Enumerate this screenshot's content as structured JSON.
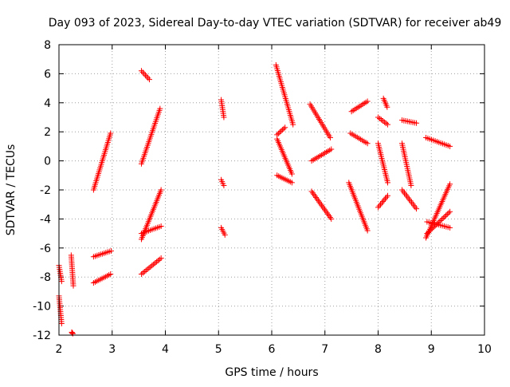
{
  "chart_data": {
    "type": "scatter",
    "title": "Day 093 of 2023, Sidereal Day-to-day VTEC variation (SDTVAR) for receiver ab49",
    "xlabel": "GPS time / hours",
    "ylabel": "SDTVAR / TECUs",
    "xlim": [
      2,
      10
    ],
    "ylim": [
      -12,
      8
    ],
    "x_ticks": [
      "2",
      "3",
      "4",
      "5",
      "6",
      "7",
      "8",
      "9",
      "10"
    ],
    "y_ticks": [
      "8",
      "6",
      "4",
      "2",
      "0",
      "-2",
      "-4",
      "-6",
      "-8",
      "-10",
      "-12"
    ],
    "grid": true,
    "marker": "+",
    "marker_color": "#ff0000",
    "segments": [
      {
        "x0": 2.0,
        "x1": 2.05,
        "y0": -7.2,
        "y1": -8.3
      },
      {
        "x0": 2.0,
        "x1": 2.05,
        "y0": -9.3,
        "y1": -11.2
      },
      {
        "x0": 2.23,
        "x1": 2.27,
        "y0": -6.5,
        "y1": -8.6
      },
      {
        "x0": 2.24,
        "x1": 2.26,
        "y0": -11.8,
        "y1": -11.9
      },
      {
        "x0": 2.65,
        "x1": 2.97,
        "y0": -2.0,
        "y1": 1.9
      },
      {
        "x0": 2.65,
        "x1": 2.98,
        "y0": -6.6,
        "y1": -6.2
      },
      {
        "x0": 2.65,
        "x1": 2.97,
        "y0": -8.4,
        "y1": -7.8
      },
      {
        "x0": 3.55,
        "x1": 3.7,
        "y0": 6.2,
        "y1": 5.6
      },
      {
        "x0": 3.55,
        "x1": 3.9,
        "y0": -0.2,
        "y1": 3.6
      },
      {
        "x0": 3.55,
        "x1": 3.92,
        "y0": -5.4,
        "y1": -2.0
      },
      {
        "x0": 3.55,
        "x1": 3.92,
        "y0": -5.0,
        "y1": -4.5
      },
      {
        "x0": 3.55,
        "x1": 3.92,
        "y0": -7.8,
        "y1": -6.7
      },
      {
        "x0": 5.05,
        "x1": 5.1,
        "y0": 4.2,
        "y1": 3.0
      },
      {
        "x0": 5.05,
        "x1": 5.1,
        "y0": -1.3,
        "y1": -1.7
      },
      {
        "x0": 5.05,
        "x1": 5.12,
        "y0": -4.6,
        "y1": -5.1
      },
      {
        "x0": 6.08,
        "x1": 6.4,
        "y0": 6.6,
        "y1": 2.5
      },
      {
        "x0": 6.1,
        "x1": 6.25,
        "y0": 1.8,
        "y1": 2.3
      },
      {
        "x0": 6.1,
        "x1": 6.38,
        "y0": 1.5,
        "y1": -0.9
      },
      {
        "x0": 6.1,
        "x1": 6.38,
        "y0": -1.0,
        "y1": -1.5
      },
      {
        "x0": 6.72,
        "x1": 7.1,
        "y0": 3.9,
        "y1": 1.6
      },
      {
        "x0": 6.75,
        "x1": 7.12,
        "y0": 0.0,
        "y1": 0.8
      },
      {
        "x0": 6.75,
        "x1": 7.12,
        "y0": -2.1,
        "y1": -4.0
      },
      {
        "x0": 7.5,
        "x1": 7.8,
        "y0": 3.4,
        "y1": 4.1
      },
      {
        "x0": 7.48,
        "x1": 7.8,
        "y0": 1.9,
        "y1": 1.2
      },
      {
        "x0": 7.45,
        "x1": 7.8,
        "y0": -1.5,
        "y1": -4.8
      },
      {
        "x0": 8.0,
        "x1": 8.18,
        "y0": 3.0,
        "y1": 2.5
      },
      {
        "x0": 8.1,
        "x1": 8.17,
        "y0": 4.3,
        "y1": 3.7
      },
      {
        "x0": 8.0,
        "x1": 8.18,
        "y0": 1.2,
        "y1": -1.5
      },
      {
        "x0": 8.0,
        "x1": 8.18,
        "y0": -3.2,
        "y1": -2.4
      },
      {
        "x0": 8.45,
        "x1": 8.72,
        "y0": 2.8,
        "y1": 2.6
      },
      {
        "x0": 8.45,
        "x1": 8.62,
        "y0": 1.2,
        "y1": -1.7
      },
      {
        "x0": 8.45,
        "x1": 8.72,
        "y0": -2.0,
        "y1": -3.3
      },
      {
        "x0": 8.9,
        "x1": 9.35,
        "y0": 1.6,
        "y1": 1.0
      },
      {
        "x0": 8.9,
        "x1": 9.35,
        "y0": -5.3,
        "y1": -1.6
      },
      {
        "x0": 8.92,
        "x1": 9.35,
        "y0": -4.2,
        "y1": -4.6
      },
      {
        "x0": 8.92,
        "x1": 9.35,
        "y0": -5.0,
        "y1": -3.5
      }
    ]
  }
}
